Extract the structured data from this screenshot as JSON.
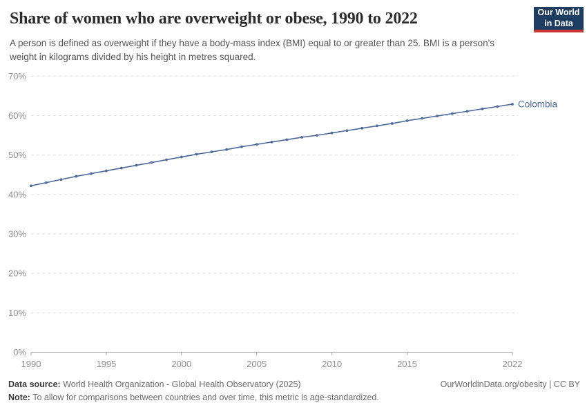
{
  "header": {
    "title": "Share of women who are overweight or obese, 1990 to 2022",
    "subtitle": "A person is defined as overweight if they have a body-mass index (BMI) equal to or greater than 25. BMI is a person's weight in kilograms divided by his height in metres squared."
  },
  "logo": {
    "line1": "Our World",
    "line2": "in Data",
    "bg_color": "#1d3d63",
    "stripe_color": "#cf352e"
  },
  "chart_data": {
    "type": "line",
    "title": "Share of women who are overweight or obese, 1990 to 2022",
    "x": [
      1990,
      1991,
      1992,
      1993,
      1994,
      1995,
      1996,
      1997,
      1998,
      1999,
      2000,
      2001,
      2002,
      2003,
      2004,
      2005,
      2006,
      2007,
      2008,
      2009,
      2010,
      2011,
      2012,
      2013,
      2014,
      2015,
      2016,
      2017,
      2018,
      2019,
      2020,
      2021,
      2022
    ],
    "series": [
      {
        "name": "Colombia",
        "color": "#4C6A9C",
        "values": [
          42.2,
          43.0,
          43.8,
          44.6,
          45.3,
          46.0,
          46.7,
          47.4,
          48.1,
          48.8,
          49.5,
          50.2,
          50.8,
          51.4,
          52.1,
          52.7,
          53.3,
          53.9,
          54.5,
          55.0,
          55.6,
          56.2,
          56.8,
          57.4,
          58.0,
          58.7,
          59.3,
          59.9,
          60.5,
          61.1,
          61.7,
          62.3,
          62.9
        ]
      }
    ],
    "xlabel": "",
    "ylabel": "",
    "ylim": [
      0,
      70
    ],
    "yticks": [
      0,
      10,
      20,
      30,
      40,
      50,
      60,
      70
    ],
    "ytick_suffix": "%",
    "xticks": [
      1990,
      1995,
      2000,
      2005,
      2010,
      2015,
      2022
    ],
    "grid": "horizontal-dashed",
    "legend_position": "end-of-line",
    "end_label": "Colombia",
    "marker": "circle"
  },
  "footer": {
    "datasource_label": "Data source:",
    "datasource_text": " World Health Organization - Global Health Observatory (2025)",
    "rights": "OurWorldinData.org/obesity | CC BY",
    "note_label": "Note:",
    "note_text": " To allow for comparisons between countries and over time, this metric is age-standardized."
  }
}
